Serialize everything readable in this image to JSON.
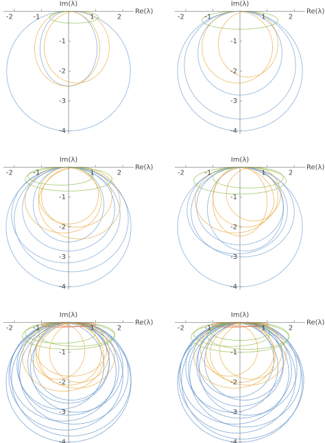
{
  "chart_data": [
    {
      "type": "ellipses",
      "x_label": "Re(λ)",
      "y_label": "Im(λ)",
      "xlim": [
        -2.4,
        2.4
      ],
      "ylim": [
        -4.1,
        0.1
      ],
      "xticks": [
        -2,
        -1,
        1,
        2
      ],
      "yticks": [
        -1,
        -2,
        -3,
        -4
      ],
      "series": [
        {
          "color": "#6a9bd1",
          "ellipses": [
            [
              0,
              -2,
              2.28,
              2
            ],
            [
              0,
              -1.25,
              1.05,
              1.25
            ]
          ]
        },
        {
          "color": "#e8a73a",
          "ellipses": [
            [
              -0.05,
              -1.25,
              1.2,
              1.25
            ],
            [
              0.3,
              -1.2,
              1.2,
              1.2
            ]
          ]
        },
        {
          "color": "#8cba45",
          "ellipses": [
            [
              0.2,
              -0.2,
              0.9,
              0.2
            ]
          ]
        }
      ]
    },
    {
      "type": "ellipses",
      "x_label": "Re(λ)",
      "y_label": "Im(λ)",
      "xlim": [
        -2.4,
        2.4
      ],
      "ylim": [
        -4.1,
        0.1
      ],
      "xticks": [
        -2,
        -1,
        1,
        2
      ],
      "yticks": [
        -1,
        -2,
        -3,
        -4
      ],
      "series": [
        {
          "color": "#6a9bd1",
          "ellipses": [
            [
              0,
              -2,
              2.3,
              2
            ],
            [
              0,
              -1.8,
              2.05,
              1.8
            ],
            [
              0,
              -1.4,
              1.55,
              1.4
            ]
          ]
        },
        {
          "color": "#e8a73a",
          "ellipses": [
            [
              -0.1,
              -1.2,
              1.3,
              1.2
            ],
            [
              0.3,
              -1.1,
              1.1,
              1.1
            ]
          ]
        },
        {
          "color": "#8cba45",
          "ellipses": [
            [
              0,
              -0.3,
              1.4,
              0.3
            ]
          ]
        }
      ]
    },
    {
      "type": "ellipses",
      "x_label": "Re(λ)",
      "y_label": "Im(λ)",
      "xlim": [
        -2.4,
        2.4
      ],
      "ylim": [
        -4.1,
        0.1
      ],
      "xticks": [
        -2,
        -1,
        1,
        2
      ],
      "yticks": [
        -1,
        -2,
        -3,
        -4
      ],
      "series": [
        {
          "color": "#6a9bd1",
          "ellipses": [
            [
              0,
              -2,
              2.3,
              2
            ],
            [
              0.1,
              -1.75,
              2.1,
              1.75
            ],
            [
              -0.1,
              -1.6,
              2.0,
              1.6
            ],
            [
              0,
              -1.4,
              1.7,
              1.4
            ],
            [
              0,
              -1.25,
              1.3,
              1.25
            ]
          ]
        },
        {
          "color": "#e8a73a",
          "ellipses": [
            [
              -0.2,
              -1.1,
              1.4,
              1.1
            ],
            [
              0.3,
              -1.0,
              1.3,
              1.0
            ],
            [
              0,
              -0.95,
              1.1,
              0.95
            ],
            [
              0.4,
              -1.2,
              1.5,
              1.2
            ]
          ]
        },
        {
          "color": "#8cba45",
          "ellipses": [
            [
              0,
              -0.4,
              1.6,
              0.4
            ],
            [
              -0.3,
              -0.3,
              1.2,
              0.3
            ]
          ]
        }
      ]
    },
    {
      "type": "ellipses",
      "x_label": "Re(λ)",
      "y_label": "Im(λ)",
      "xlim": [
        -2.4,
        2.4
      ],
      "ylim": [
        -4.1,
        0.1
      ],
      "xticks": [
        -2,
        -1,
        1,
        2
      ],
      "yticks": [
        -1,
        -2,
        -3,
        -4
      ],
      "series": [
        {
          "color": "#6a9bd1",
          "ellipses": [
            [
              0,
              -2,
              2.3,
              2
            ],
            [
              0.1,
              -1.5,
              1.9,
              1.5
            ],
            [
              -0.1,
              -1.45,
              1.85,
              1.45
            ],
            [
              0,
              -1.3,
              1.6,
              1.3
            ],
            [
              0.2,
              -1.4,
              1.4,
              1.4
            ]
          ]
        },
        {
          "color": "#e8a73a",
          "ellipses": [
            [
              -0.2,
              -1.1,
              1.45,
              1.1
            ],
            [
              0.2,
              -1.0,
              1.2,
              1.0
            ],
            [
              0,
              -1.15,
              1.0,
              1.15
            ],
            [
              0.5,
              -0.9,
              1.0,
              0.9
            ]
          ]
        },
        {
          "color": "#8cba45",
          "ellipses": [
            [
              0,
              -0.45,
              1.7,
              0.45
            ],
            [
              0.3,
              -0.35,
              1.3,
              0.35
            ]
          ]
        }
      ]
    },
    {
      "type": "ellipses",
      "x_label": "Re(λ)",
      "y_label": "Im(λ)",
      "xlim": [
        -2.4,
        2.4
      ],
      "ylim": [
        -4.1,
        0.1
      ],
      "xticks": [
        -2,
        -1,
        1,
        2
      ],
      "yticks": [
        -1,
        -2,
        -3,
        -4
      ],
      "series": [
        {
          "color": "#5b8ec9",
          "ellipses": [
            [
              0,
              -2,
              2.3,
              2
            ],
            [
              0.1,
              -1.9,
              2.2,
              1.9
            ],
            [
              -0.1,
              -1.8,
              2.1,
              1.8
            ],
            [
              0.2,
              -1.7,
              2.0,
              1.7
            ],
            [
              -0.2,
              -1.65,
              1.95,
              1.65
            ],
            [
              0,
              -1.55,
              1.85,
              1.55
            ],
            [
              0.3,
              -1.5,
              1.7,
              1.5
            ],
            [
              -0.3,
              -1.45,
              1.6,
              1.45
            ],
            [
              0,
              -1.35,
              1.5,
              1.35
            ],
            [
              0.1,
              -1.3,
              1.4,
              1.3
            ]
          ]
        },
        {
          "color": "#e8a73a",
          "ellipses": [
            [
              -0.2,
              -1.15,
              1.5,
              1.15
            ],
            [
              0.3,
              -1.1,
              1.4,
              1.1
            ],
            [
              0,
              -1.05,
              1.2,
              1.05
            ],
            [
              0.4,
              -1.0,
              1.1,
              1.0
            ],
            [
              -0.4,
              -0.95,
              1.0,
              0.95
            ],
            [
              0.1,
              -0.9,
              1.3,
              0.9
            ]
          ]
        },
        {
          "color": "#8cba45",
          "ellipses": [
            [
              0,
              -0.45,
              1.7,
              0.45
            ],
            [
              -0.3,
              -0.35,
              1.3,
              0.35
            ],
            [
              0.3,
              -0.4,
              1.4,
              0.4
            ]
          ]
        },
        {
          "color": "#e0603a",
          "ellipses": [
            [
              -0.2,
              -0.08,
              0.8,
              0.08
            ],
            [
              0.3,
              -0.07,
              0.7,
              0.07
            ]
          ]
        }
      ]
    },
    {
      "type": "ellipses",
      "x_label": "Re(λ)",
      "y_label": "Im(λ)",
      "xlim": [
        -2.4,
        2.4
      ],
      "ylim": [
        -4.1,
        0.1
      ],
      "xticks": [
        -2,
        -1,
        1,
        2
      ],
      "yticks": [
        -1,
        -2,
        -3,
        -4
      ],
      "series": [
        {
          "color": "#5b8ec9",
          "ellipses": [
            [
              0,
              -2,
              2.3,
              2
            ],
            [
              0.1,
              -1.95,
              2.25,
              1.95
            ],
            [
              -0.1,
              -1.85,
              2.15,
              1.85
            ],
            [
              0.2,
              -1.75,
              2.05,
              1.75
            ],
            [
              -0.2,
              -1.7,
              2.0,
              1.7
            ],
            [
              0,
              -1.6,
              1.9,
              1.6
            ],
            [
              0.3,
              -1.55,
              1.8,
              1.55
            ],
            [
              -0.3,
              -1.5,
              1.7,
              1.5
            ],
            [
              0,
              -1.4,
              1.6,
              1.4
            ],
            [
              0.15,
              -1.3,
              1.45,
              1.3
            ],
            [
              -0.15,
              -1.25,
              1.4,
              1.25
            ]
          ]
        },
        {
          "color": "#e8a73a",
          "ellipses": [
            [
              -0.2,
              -1.1,
              1.5,
              1.1
            ],
            [
              0.3,
              -1.05,
              1.4,
              1.05
            ],
            [
              0,
              -1.0,
              1.25,
              1.0
            ],
            [
              0.4,
              -0.95,
              1.15,
              0.95
            ],
            [
              -0.4,
              -0.9,
              1.05,
              0.9
            ]
          ]
        },
        {
          "color": "#8cba45",
          "ellipses": [
            [
              0,
              -0.5,
              1.8,
              0.5
            ],
            [
              -0.3,
              -0.4,
              1.4,
              0.4
            ],
            [
              0.3,
              -0.45,
              1.5,
              0.45
            ],
            [
              0,
              -0.3,
              1.1,
              0.3
            ]
          ]
        },
        {
          "color": "#e0603a",
          "ellipses": [
            [
              -0.2,
              -0.08,
              0.85,
              0.08
            ],
            [
              0.3,
              -0.07,
              0.75,
              0.07
            ]
          ]
        }
      ]
    }
  ]
}
